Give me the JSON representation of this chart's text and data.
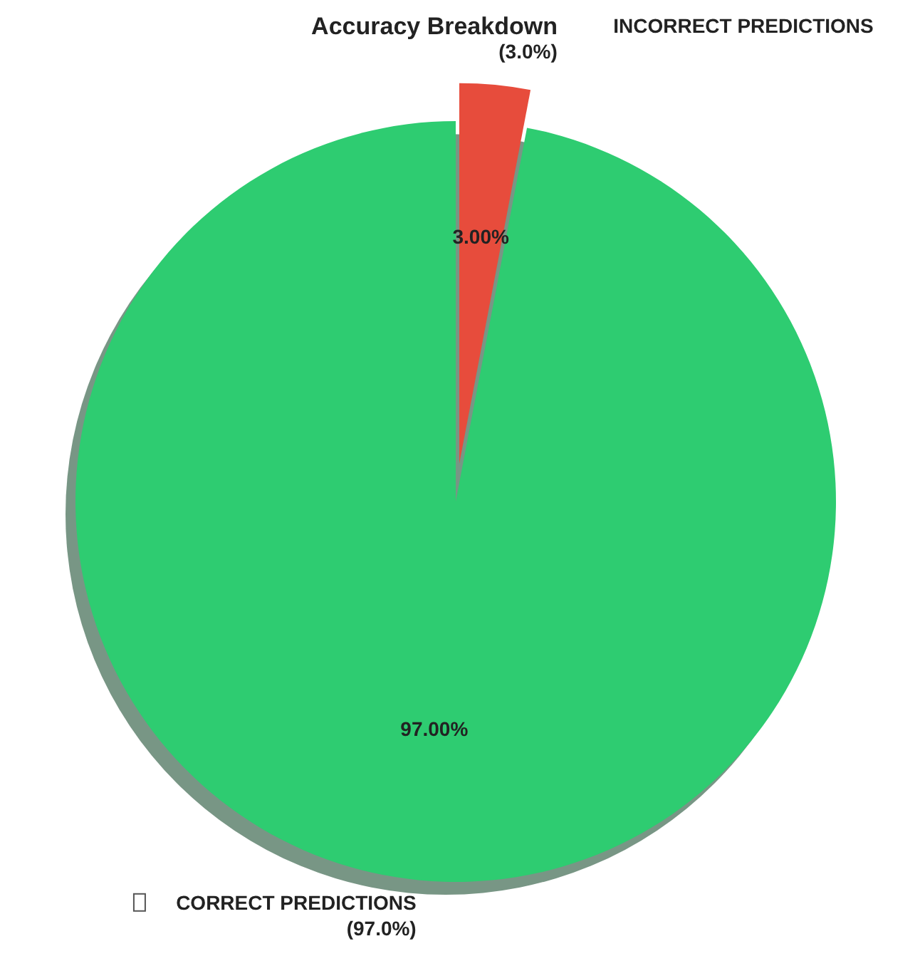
{
  "chart_data": {
    "type": "pie",
    "title": "Accuracy Breakdown",
    "categories": [
      "CORRECT PREDICTIONS\n(97.0%)",
      "INCORRECT PREDICTIONS\n(3.0%)"
    ],
    "values": [
      97,
      3
    ],
    "colors": [
      "#2ecc71",
      "#e74c3c"
    ],
    "value_labels": [
      "97.00%",
      "3.00%"
    ],
    "legend": false
  }
}
